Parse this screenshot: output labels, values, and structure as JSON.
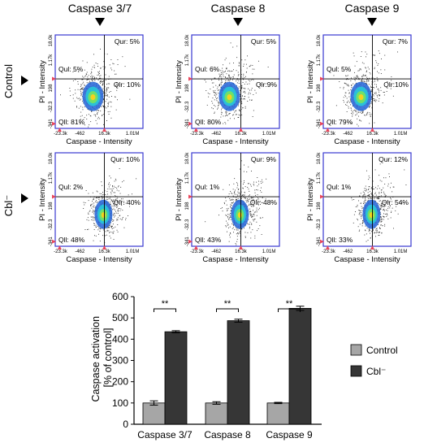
{
  "columns": [
    "Caspase 3/7",
    "Caspase 8",
    "Caspase 9"
  ],
  "rows": [
    "Control",
    "Cbl⁻"
  ],
  "flow_axes": {
    "xlabel": "Caspase - Intensity",
    "ylabel": "PI - Intensity",
    "xticks": [
      "-23.3k",
      "-462",
      "16.3k",
      "1.01M"
    ],
    "yticks": [
      "-341",
      "-32.3",
      "198",
      "1.17k",
      "18.0k"
    ]
  },
  "flow_panels": [
    {
      "quadrants": {
        "qul": "Qul: 5%",
        "qur": "Qur: 5%",
        "qll": "Qll: 81%",
        "qlr": "Qlr: 10%"
      }
    },
    {
      "quadrants": {
        "qul": "Qul: 6%",
        "qur": "Qur: 5%",
        "qll": "Qll: 80%",
        "qlr": "Qlr:9%"
      }
    },
    {
      "quadrants": {
        "qul": "Qul: 5%",
        "qur": "Qur: 7%",
        "qll": "Qll: 79%",
        "qlr": "Qlr:10%"
      }
    },
    {
      "quadrants": {
        "qul": "Qul: 2%",
        "qur": "Qur: 10%",
        "qll": "Qll: 48%",
        "qlr": "Qlr: 40%"
      }
    },
    {
      "quadrants": {
        "qul": "Qul: 1%",
        "qur": "Qur: 9%",
        "qll": "Qll: 43%",
        "qlr": "Qlr: 48%"
      }
    },
    {
      "quadrants": {
        "qul": "Qul: 1%",
        "qur": "Qur: 12%",
        "qll": "Qll: 33%",
        "qlr": "Qlr: 54%"
      }
    }
  ],
  "colors": {
    "panel_border": "#3a3ad0",
    "control_bar": "#a6a6a6",
    "cbl_bar": "#363636",
    "marker": "#e8455a"
  },
  "chart_data": {
    "type": "bar",
    "categories": [
      "Caspase 3/7",
      "Caspase 8",
      "Caspase 9"
    ],
    "series": [
      {
        "name": "Control",
        "values": [
          100,
          100,
          100
        ],
        "errors": [
          10,
          6,
          3
        ]
      },
      {
        "name": "Cbl⁻",
        "values": [
          435,
          487,
          545
        ],
        "errors": [
          5,
          7,
          10
        ]
      }
    ],
    "ylabel": "Caspase activation\n[% of control]",
    "xlabel": "",
    "ylim": [
      0,
      600
    ],
    "yticks": [
      0,
      100,
      200,
      300,
      400,
      500,
      600
    ],
    "significance": [
      "**",
      "**",
      "**"
    ],
    "legend_position": "right"
  }
}
